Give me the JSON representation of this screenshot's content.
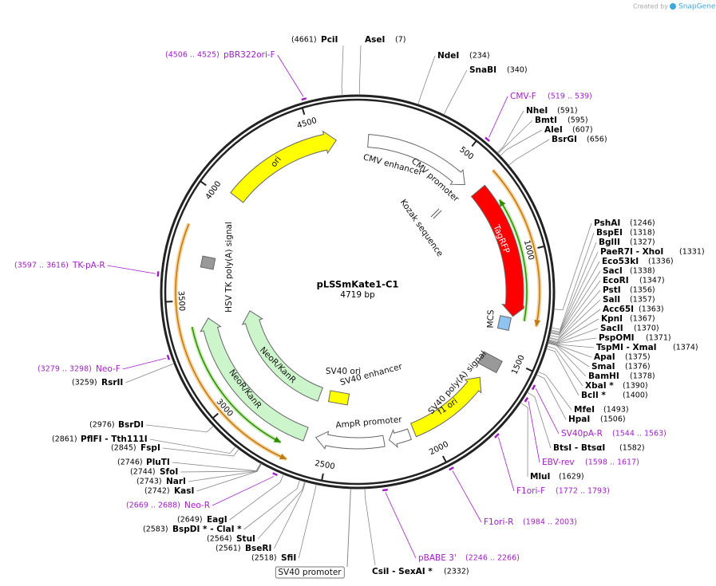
{
  "credit": {
    "prefix": "Created by",
    "brand": "SnapGene"
  },
  "title": "pLSSmKate1-C1",
  "size": {
    "value": 4719,
    "label": "4719 bp"
  },
  "ruler_ticks": [
    500,
    1000,
    1500,
    2000,
    2500,
    3000,
    3500,
    4000,
    4500
  ],
  "features": [
    {
      "label": "ori"
    },
    {
      "label": "CMV enhancer"
    },
    {
      "label": "CMV promoter"
    },
    {
      "label": "Kozak sequence"
    },
    {
      "label": "TagRFP"
    },
    {
      "label": "MCS"
    },
    {
      "label": "SV40 poly(A) signal"
    },
    {
      "label": "f1 ori"
    },
    {
      "label": "SV40 enhancer"
    },
    {
      "label": "SV40 ori"
    },
    {
      "label": "AmpR promoter"
    },
    {
      "label": "NeoR/KanR"
    },
    {
      "label": "NeoR/KanR"
    },
    {
      "label": "HSV TK poly(A) signal"
    },
    {
      "label": "SV40 promoter"
    }
  ],
  "sites": [
    {
      "name": "AseI",
      "position": {
        "value": 7,
        "label": "(7)"
      }
    },
    {
      "name": "NdeI",
      "position": {
        "value": 234,
        "label": "(234)"
      }
    },
    {
      "name": "SnaBI",
      "position": {
        "value": 340,
        "label": "(340)"
      }
    },
    {
      "name": "NheI",
      "position": {
        "value": 591,
        "label": "(591)"
      }
    },
    {
      "name": "BmtI",
      "position": {
        "value": 595,
        "label": "(595)"
      }
    },
    {
      "name": "AleI",
      "position": {
        "value": 607,
        "label": "(607)"
      }
    },
    {
      "name": "BsrGI",
      "position": {
        "value": 656,
        "label": "(656)"
      }
    },
    {
      "name": "PshAI",
      "position": {
        "value": 1246,
        "label": "(1246)"
      }
    },
    {
      "name": "BspEI",
      "position": {
        "value": 1318,
        "label": "(1318)"
      }
    },
    {
      "name": "BglII",
      "position": {
        "value": 1327,
        "label": "(1327)"
      }
    },
    {
      "name": "PaeR7I - XhoI",
      "position": {
        "value": 1331,
        "label": "(1331)"
      }
    },
    {
      "name": "Eco53kI",
      "position": {
        "value": 1336,
        "label": "(1336)"
      }
    },
    {
      "name": "SacI",
      "position": {
        "value": 1338,
        "label": "(1338)"
      }
    },
    {
      "name": "EcoRI",
      "position": {
        "value": 1347,
        "label": "(1347)"
      }
    },
    {
      "name": "PstI",
      "position": {
        "value": 1356,
        "label": "(1356)"
      }
    },
    {
      "name": "SalI",
      "position": {
        "value": 1357,
        "label": "(1357)"
      }
    },
    {
      "name": "Acc65I",
      "position": {
        "value": 1363,
        "label": "(1363)"
      }
    },
    {
      "name": "KpnI",
      "position": {
        "value": 1367,
        "label": "(1367)"
      }
    },
    {
      "name": "SacII",
      "position": {
        "value": 1370,
        "label": "(1370)"
      }
    },
    {
      "name": "PspOMI",
      "position": {
        "value": 1371,
        "label": "(1371)"
      }
    },
    {
      "name": "TspMI - XmaI",
      "position": {
        "value": 1374,
        "label": "(1374)"
      }
    },
    {
      "name": "ApaI",
      "position": {
        "value": 1375,
        "label": "(1375)"
      }
    },
    {
      "name": "SmaI",
      "position": {
        "value": 1376,
        "label": "(1376)"
      }
    },
    {
      "name": "BamHI",
      "position": {
        "value": 1378,
        "label": "(1378)"
      }
    },
    {
      "name": "XbaI *",
      "position": {
        "value": 1390,
        "label": "(1390)"
      }
    },
    {
      "name": "BclI *",
      "position": {
        "value": 1400,
        "label": "(1400)"
      }
    },
    {
      "name": "MfeI",
      "position": {
        "value": 1493,
        "label": "(1493)"
      }
    },
    {
      "name": "HpaI",
      "position": {
        "value": 1506,
        "label": "(1506)"
      }
    },
    {
      "name": "BtsI - BtsαI",
      "position": {
        "value": 1582,
        "label": "(1582)"
      }
    },
    {
      "name": "MluI",
      "position": {
        "value": 1629,
        "label": "(1629)"
      }
    },
    {
      "name": "CsiI - SexAI *",
      "position": {
        "value": 2332,
        "label": "(2332)"
      }
    },
    {
      "name": "SfiI",
      "position": {
        "value": 2518,
        "label": "(2518)"
      }
    },
    {
      "name": "BseRI",
      "position": {
        "value": 2561,
        "label": "(2561)"
      }
    },
    {
      "name": "StuI",
      "position": {
        "value": 2564,
        "label": "(2564)"
      }
    },
    {
      "name": "BspDI * - ClaI *",
      "position": {
        "value": 2583,
        "label": "(2583)"
      }
    },
    {
      "name": "EagI",
      "position": {
        "value": 2649,
        "label": "(2649)"
      }
    },
    {
      "name": "KasI",
      "position": {
        "value": 2742,
        "label": "(2742)"
      }
    },
    {
      "name": "NarI",
      "position": {
        "value": 2743,
        "label": "(2743)"
      }
    },
    {
      "name": "SfoI",
      "position": {
        "value": 2744,
        "label": "(2744)"
      }
    },
    {
      "name": "PluTI",
      "position": {
        "value": 2746,
        "label": "(2746)"
      }
    },
    {
      "name": "FspI",
      "position": {
        "value": 2845,
        "label": "(2845)"
      }
    },
    {
      "name": "PflFI - Tth111I",
      "position": {
        "value": 2861,
        "label": "(2861)"
      }
    },
    {
      "name": "BsrDI",
      "position": {
        "value": 2976,
        "label": "(2976)"
      }
    },
    {
      "name": "RsrII",
      "position": {
        "value": 3259,
        "label": "(3259)"
      }
    },
    {
      "name": "PciI",
      "position": {
        "value": 4661,
        "label": "(4661)"
      }
    }
  ],
  "primers": [
    {
      "name": "CMV-F",
      "range": {
        "start": 519,
        "end": 539,
        "label": "(519 .. 539)"
      }
    },
    {
      "name": "SV40pA-R",
      "range": {
        "start": 1544,
        "end": 1563,
        "label": "(1544 .. 1563)"
      }
    },
    {
      "name": "EBV-rev",
      "range": {
        "start": 1598,
        "end": 1617,
        "label": "(1598 .. 1617)"
      }
    },
    {
      "name": "F1ori-F",
      "range": {
        "start": 1772,
        "end": 1793,
        "label": "(1772 .. 1793)"
      }
    },
    {
      "name": "F1ori-R",
      "range": {
        "start": 1984,
        "end": 2003,
        "label": "(1984 .. 2003)"
      }
    },
    {
      "name": "pBABE 3'",
      "range": {
        "start": 2246,
        "end": 2266,
        "label": "(2246 .. 2266)"
      }
    },
    {
      "name": "Neo-R",
      "range": {
        "start": 2669,
        "end": 2688,
        "label": "(2669 .. 2688)"
      }
    },
    {
      "name": "Neo-F",
      "range": {
        "start": 3279,
        "end": 3298,
        "label": "(3279 .. 3298)"
      }
    },
    {
      "name": "TK-pA-R",
      "range": {
        "start": 3597,
        "end": 3616,
        "label": "(3597 .. 3616)"
      }
    },
    {
      "name": "pBR322ori-F",
      "range": {
        "start": 4506,
        "end": 4525,
        "label": "(4506 .. 4525)"
      }
    }
  ]
}
